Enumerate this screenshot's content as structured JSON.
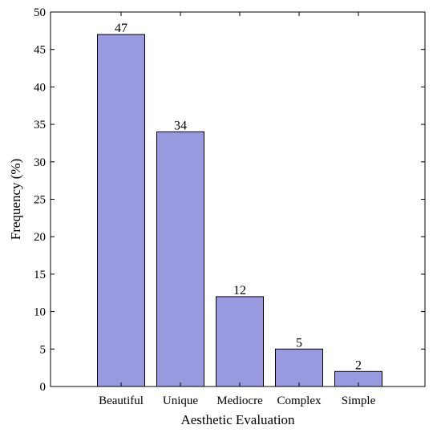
{
  "chart_data": {
    "type": "bar",
    "categories": [
      "Beautiful",
      "Unique",
      "Mediocre",
      "Complex",
      "Simple"
    ],
    "values": [
      47,
      34,
      12,
      5,
      2
    ],
    "data_labels": [
      "47",
      "34",
      "12",
      "5",
      "2"
    ],
    "title": "",
    "xlabel": "Aesthetic Evaluation",
    "ylabel": "Frequency (%)",
    "ylim": [
      0,
      50
    ],
    "yticks": [
      0,
      5,
      10,
      15,
      20,
      25,
      30,
      35,
      40,
      45,
      50
    ],
    "grid": false,
    "legend": "none",
    "bar_color": "#9999e0",
    "bar_edge_color": "#000000"
  }
}
